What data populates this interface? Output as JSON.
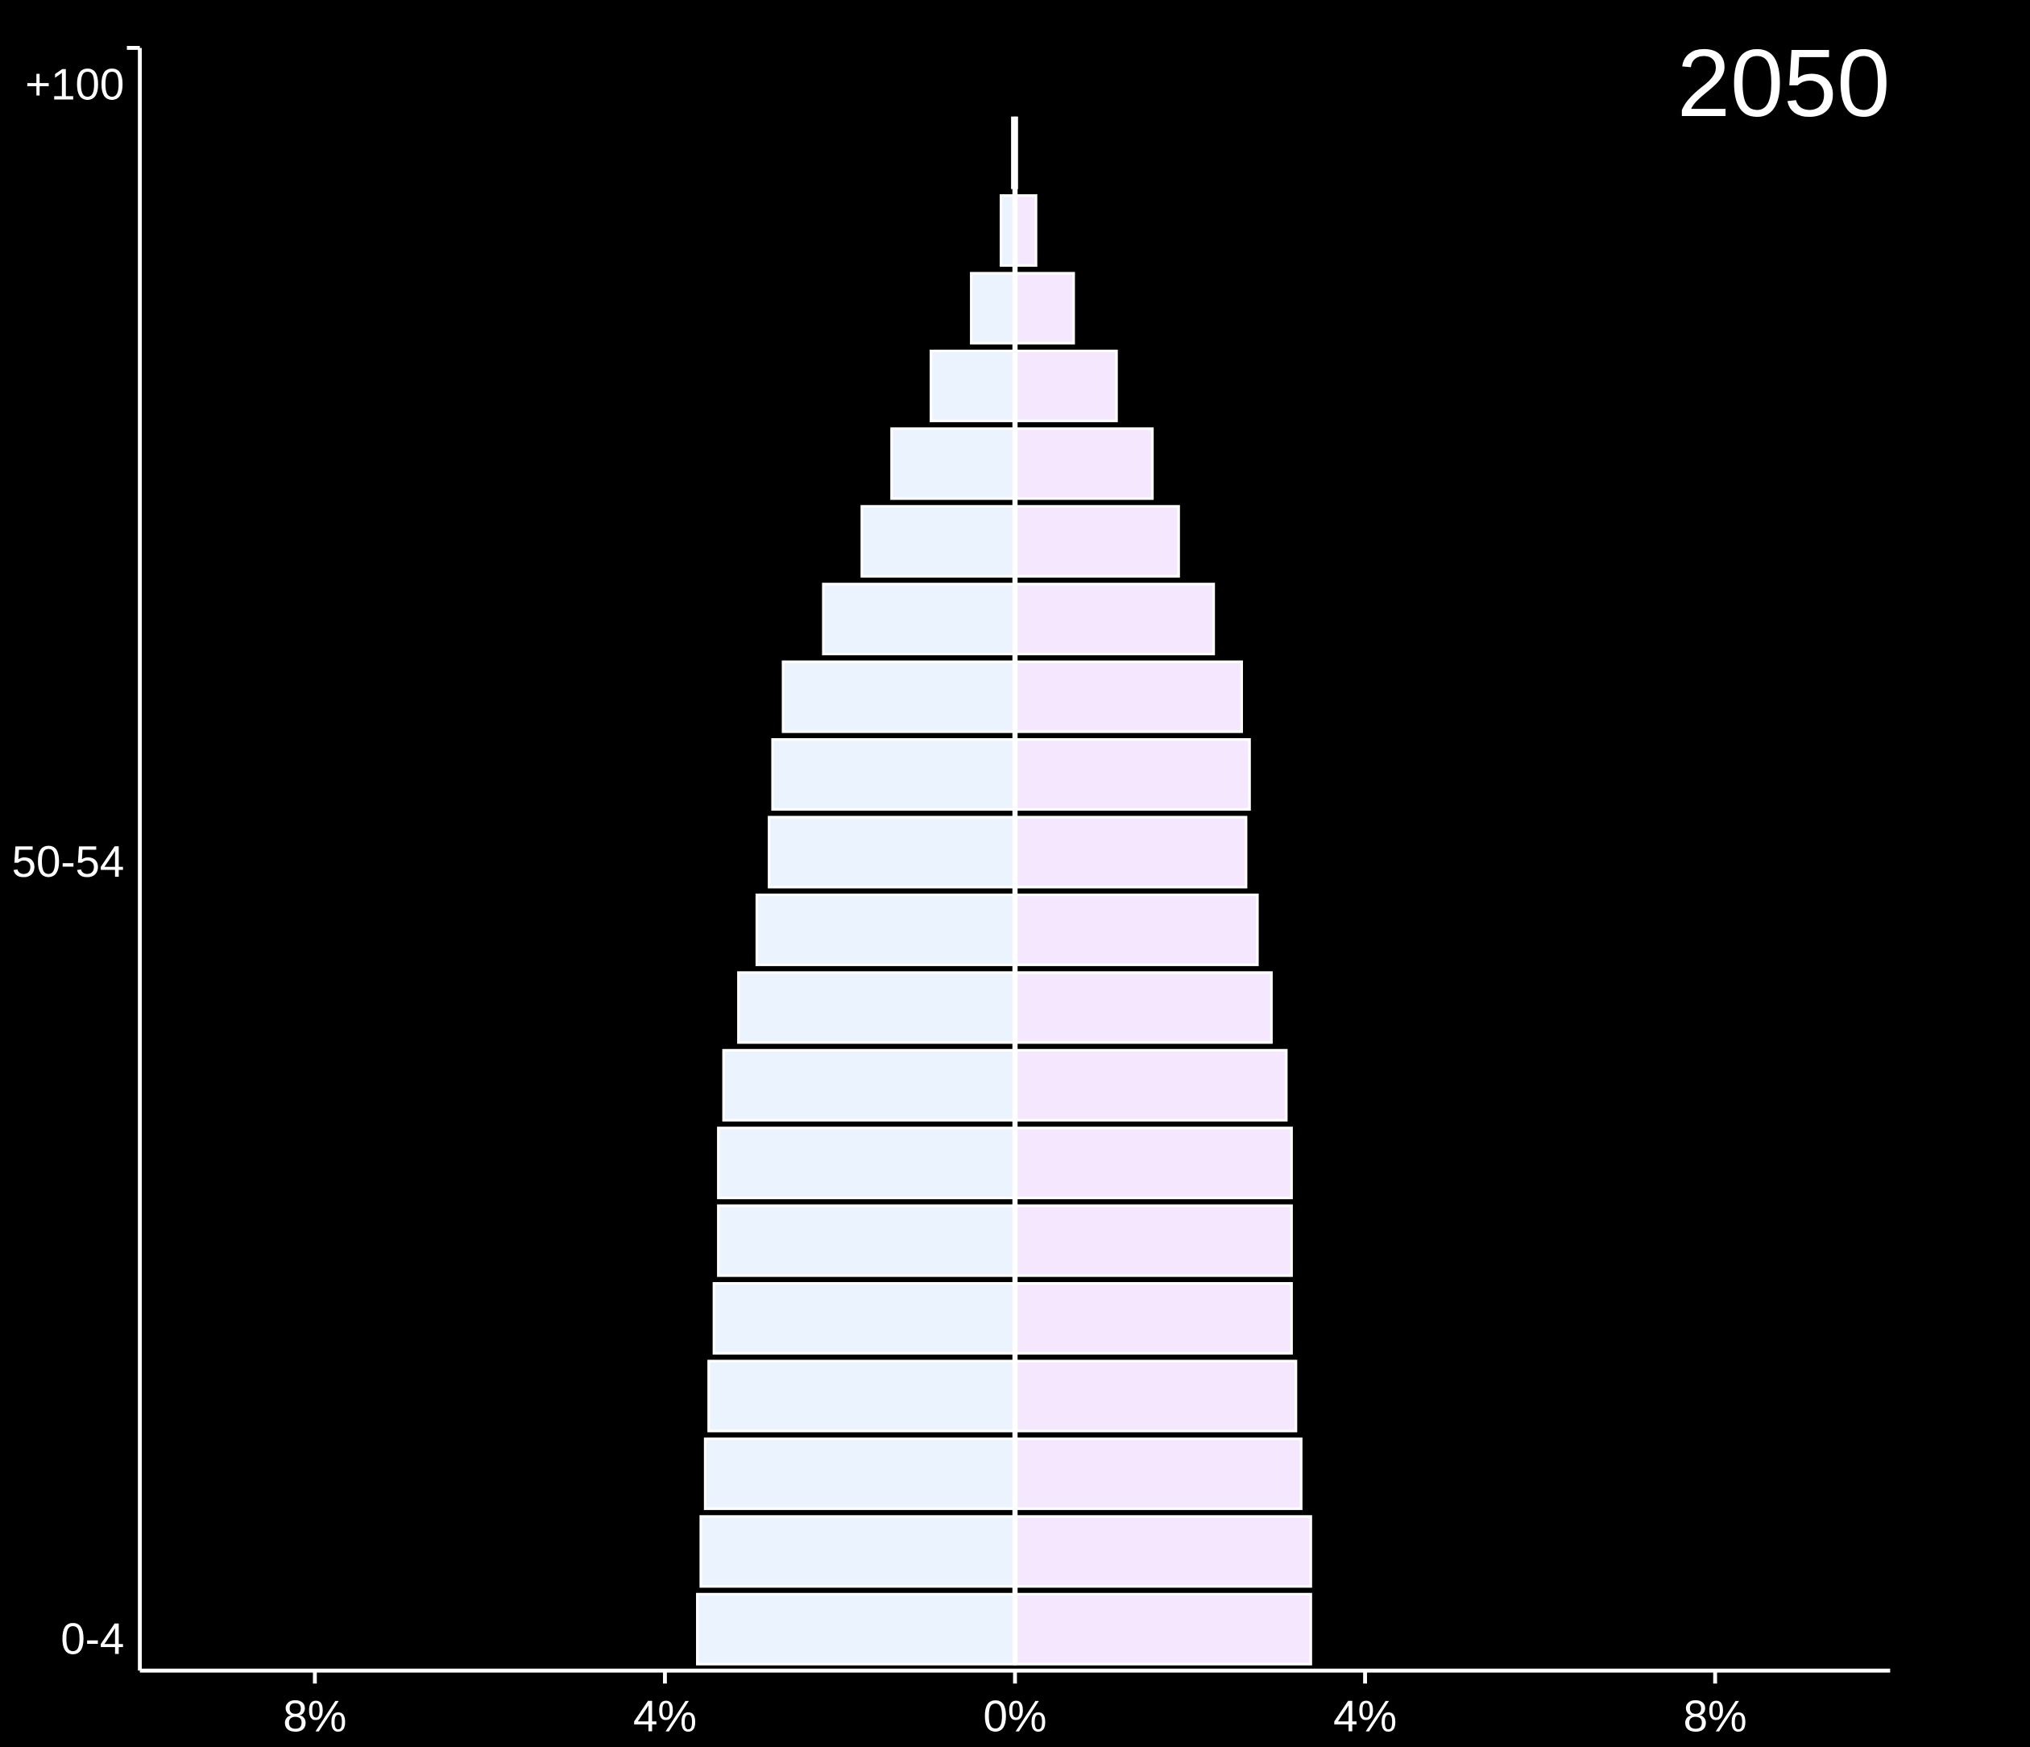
{
  "chart_data": {
    "type": "pyramid",
    "title": "2050",
    "categories": [
      "0-4",
      null,
      null,
      null,
      null,
      null,
      null,
      null,
      null,
      null,
      "50-54",
      null,
      null,
      null,
      null,
      null,
      null,
      null,
      null,
      null,
      "+100"
    ],
    "series": [
      {
        "color": "#ebf3fe",
        "values": [
          -3.63,
          -3.59,
          -3.54,
          -3.5,
          -3.44,
          -3.39,
          -3.39,
          -3.33,
          -3.16,
          -2.95,
          -2.81,
          -2.77,
          -2.65,
          -2.19,
          -1.75,
          -1.41,
          -0.96,
          -0.5,
          -0.16,
          -0.03,
          0
        ]
      },
      {
        "color": "#f5e8fe",
        "values": [
          3.38,
          3.38,
          3.27,
          3.21,
          3.16,
          3.16,
          3.16,
          3.1,
          2.93,
          2.77,
          2.64,
          2.68,
          2.59,
          2.27,
          1.87,
          1.57,
          1.16,
          0.67,
          0.24,
          0.02,
          0
        ]
      }
    ],
    "xlim": [
      -10,
      10
    ],
    "xticks": [
      {
        "value": -8,
        "label": "8%"
      },
      {
        "value": -4,
        "label": "4%"
      },
      {
        "value": 0,
        "label": "0%"
      },
      {
        "value": 4,
        "label": "4%"
      },
      {
        "value": 8,
        "label": "8%"
      }
    ]
  }
}
